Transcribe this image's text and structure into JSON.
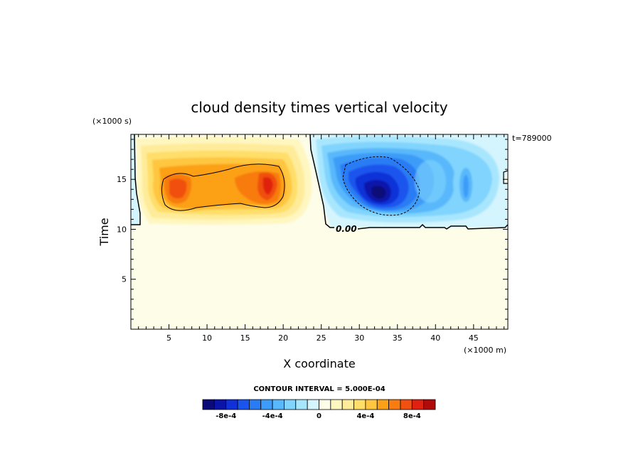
{
  "chart_data": {
    "type": "heatmap",
    "title": "cloud density times vertical velocity",
    "xlabel": "X coordinate",
    "ylabel": "Time",
    "x_units": "(×1000 m)",
    "y_units": "(×1000 s)",
    "time_annotation": "t=789000",
    "xlim": [
      0,
      49.5
    ],
    "ylim": [
      0,
      19.5
    ],
    "x_ticks": [
      5,
      10,
      15,
      20,
      25,
      30,
      35,
      40,
      45
    ],
    "y_ticks": [
      5,
      10,
      15
    ],
    "contour_interval_text": "CONTOUR INTERVAL = 5.000E-04",
    "contour_label": "0.00",
    "colorbar": {
      "levels": [
        -0.001,
        -0.0009,
        -0.0008,
        -0.0007,
        -0.0006,
        -0.0005,
        -0.0004,
        -0.0003,
        -0.0002,
        -0.0001,
        0,
        0.0001,
        0.0002,
        0.0003,
        0.0004,
        0.0005,
        0.0006,
        0.0007,
        0.0008,
        0.0009,
        0.001
      ],
      "colors": [
        "#0a0a78",
        "#0b14a8",
        "#1030d8",
        "#1a54ee",
        "#2a7cf4",
        "#3c9cf8",
        "#58b8fb",
        "#80d4fd",
        "#a8e6fe",
        "#d4f4fe",
        "#fdfde8",
        "#fff6c0",
        "#ffec9a",
        "#ffde6a",
        "#ffc640",
        "#fca018",
        "#f87c10",
        "#f05010",
        "#e02010",
        "#b00a0a"
      ],
      "tick_labels": [
        "-8e-4",
        "-4e-4",
        "0",
        "4e-4",
        "8e-4"
      ],
      "tick_values": [
        -0.0008,
        -0.0004,
        0,
        0.0004,
        0.0008
      ]
    },
    "features": [
      {
        "name": "positive-region",
        "x_range": [
          1,
          23
        ],
        "y_range": [
          11,
          19.5
        ],
        "peak_x": 18.5,
        "peak_y": 15,
        "peak_value": 0.0007
      },
      {
        "name": "negative-region",
        "x_range": [
          24,
          49.5
        ],
        "y_range": [
          10.5,
          19.5
        ],
        "peak_x": 33,
        "peak_y": 14,
        "peak_value": -0.0009
      }
    ]
  }
}
